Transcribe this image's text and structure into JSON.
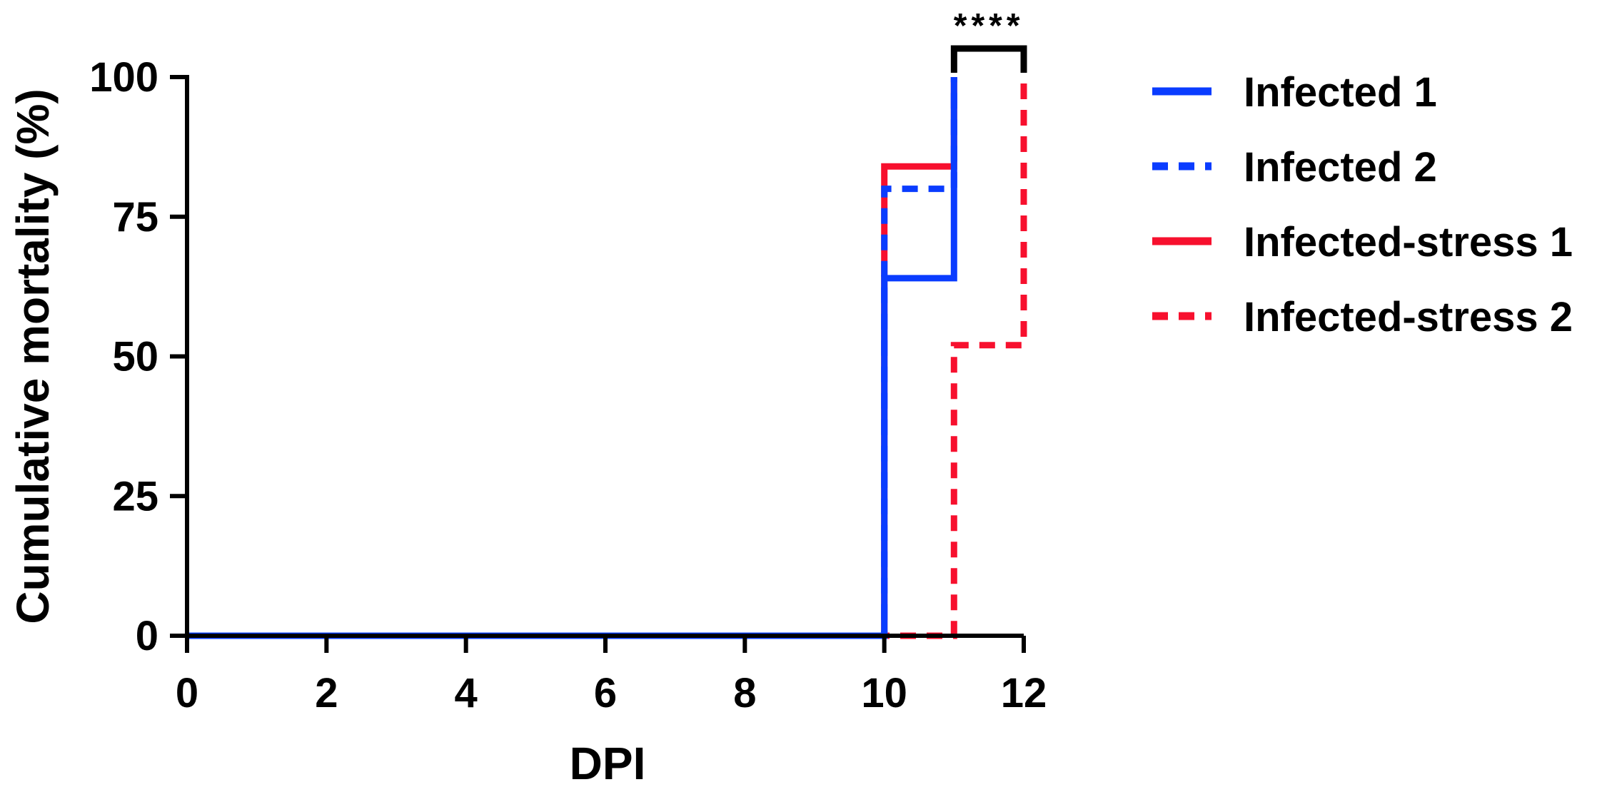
{
  "chart_data": {
    "type": "line",
    "subtype": "step",
    "xlabel": "DPI",
    "ylabel": "Cumulative mortality (%)",
    "xlim": [
      0,
      12
    ],
    "ylim": [
      0,
      100
    ],
    "xticks": [
      "0",
      "2",
      "4",
      "6",
      "8",
      "10",
      "12"
    ],
    "yticks": [
      "0",
      "25",
      "50",
      "75",
      "100"
    ],
    "grid": false,
    "legend_position": "right",
    "series": [
      {
        "name": "Infected 1",
        "color": "#0a3cff",
        "dash": "solid",
        "x": [
          0,
          10,
          10,
          11,
          11
        ],
        "y": [
          0,
          0,
          64,
          64,
          100
        ]
      },
      {
        "name": "Infected 2",
        "color": "#0a3cff",
        "dash": "dashed",
        "x": [
          0,
          10,
          10,
          11,
          11
        ],
        "y": [
          0,
          0,
          80,
          80,
          100
        ]
      },
      {
        "name": "Infected-stress 1",
        "color": "#f7102e",
        "dash": "solid",
        "x": [
          0,
          10,
          10,
          11,
          11
        ],
        "y": [
          0,
          0,
          84,
          84,
          100
        ]
      },
      {
        "name": "Infected-stress 2",
        "color": "#f7102e",
        "dash": "dashed",
        "x": [
          0,
          11,
          11,
          12,
          12
        ],
        "y": [
          0,
          0,
          52,
          52,
          100
        ]
      }
    ],
    "annotations": [
      {
        "text": "****",
        "type": "significance-bracket",
        "x_from": 11,
        "x_to": 12
      }
    ]
  }
}
